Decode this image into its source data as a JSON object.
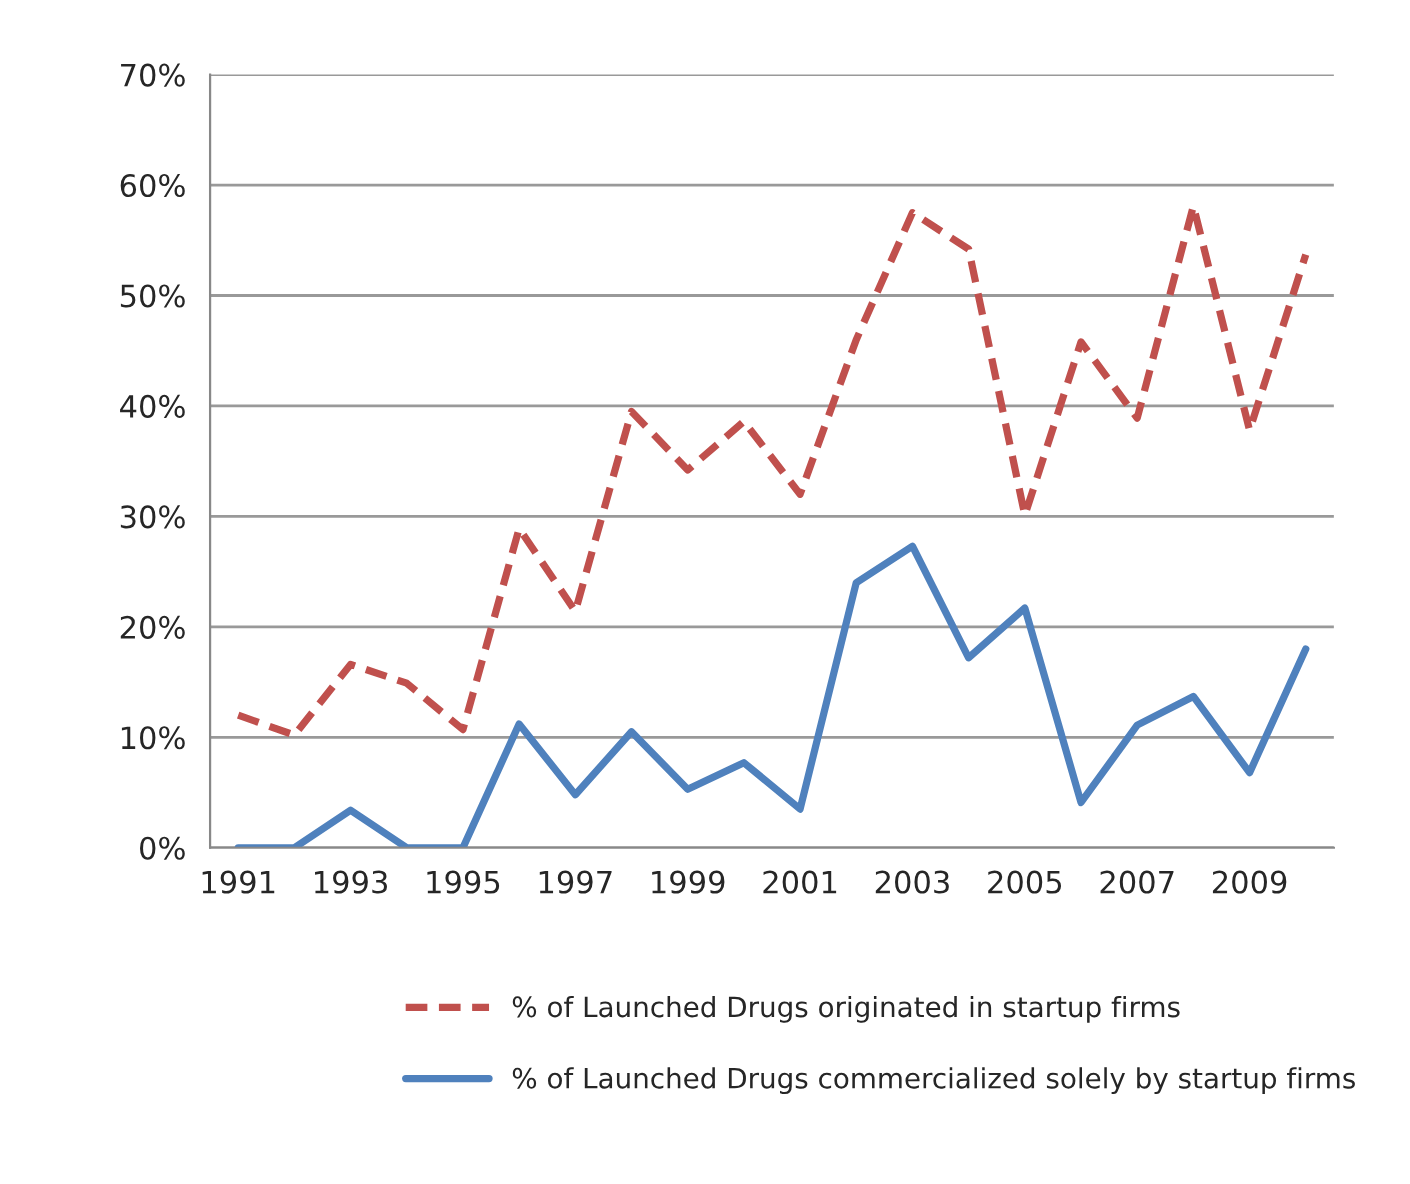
{
  "chart_data": {
    "type": "line",
    "categories": [
      "1991",
      null,
      "1993",
      null,
      "1995",
      null,
      "1997",
      null,
      "1999",
      null,
      "2001",
      null,
      "2003",
      null,
      "2005",
      null,
      "2007",
      null,
      "2009",
      null
    ],
    "series": [
      {
        "name": "% of Launched Drugs originated in startup firms",
        "color": "#c0504d",
        "line_style": "dashed",
        "values": [
          12.0,
          10.2,
          16.6,
          14.9,
          10.7,
          28.9,
          21.4,
          39.5,
          34.2,
          38.6,
          32.0,
          46.0,
          57.5,
          54.2,
          30.1,
          45.8,
          38.9,
          58.1,
          37.8,
          53.7
        ]
      },
      {
        "name": "% of Launched Drugs commercialized solely by startup firms",
        "color": "#4f81bd",
        "line_style": "solid",
        "values": [
          0,
          0,
          3.4,
          0,
          0,
          11.2,
          4.8,
          10.5,
          5.3,
          7.7,
          3.5,
          24.0,
          27.3,
          17.2,
          21.7,
          4.1,
          11.1,
          13.7,
          6.8,
          18.0
        ]
      }
    ],
    "ylim": [
      0,
      70
    ],
    "yticks": [
      {
        "value": 0,
        "label": "0%"
      },
      {
        "value": 10,
        "label": "10%"
      },
      {
        "value": 20,
        "label": "20%"
      },
      {
        "value": 30,
        "label": "30%"
      },
      {
        "value": 40,
        "label": "40%"
      },
      {
        "value": 50,
        "label": "50%"
      },
      {
        "value": 60,
        "label": "60%"
      },
      {
        "value": 70,
        "label": "70%"
      }
    ],
    "grid": "y",
    "legend": "bottom",
    "marker": "none"
  }
}
